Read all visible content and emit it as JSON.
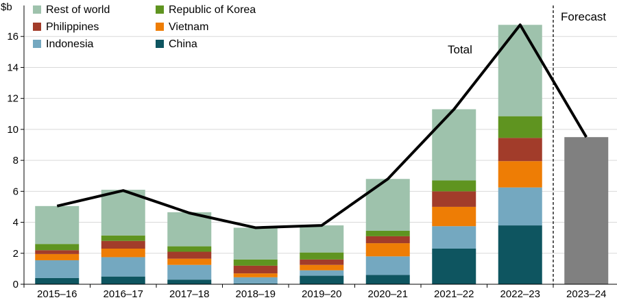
{
  "chart_data": {
    "type": "bar",
    "ylabel": "$b",
    "ylim": [
      0,
      18
    ],
    "yticks": [
      0,
      2,
      4,
      6,
      8,
      10,
      12,
      14,
      16
    ],
    "grid": true,
    "legend_position": "top-left",
    "categories": [
      "2015–16",
      "2016–17",
      "2017–18",
      "2018–19",
      "2019–20",
      "2020–21",
      "2021–22",
      "2022–23",
      "2023–24"
    ],
    "series": [
      {
        "name": "China",
        "color": "#0e5560",
        "values": [
          0.4,
          0.5,
          0.3,
          0.05,
          0.55,
          0.6,
          2.3,
          3.8,
          null
        ]
      },
      {
        "name": "Indonesia",
        "color": "#74a8c0",
        "values": [
          1.15,
          1.25,
          0.95,
          0.4,
          0.35,
          1.2,
          1.45,
          2.45,
          null
        ]
      },
      {
        "name": "Vietnam",
        "color": "#ee7d05",
        "values": [
          0.4,
          0.55,
          0.4,
          0.25,
          0.35,
          0.85,
          1.25,
          1.7,
          null
        ]
      },
      {
        "name": "Philippines",
        "color": "#a23c2a",
        "values": [
          0.25,
          0.5,
          0.45,
          0.5,
          0.35,
          0.45,
          1.0,
          1.5,
          null
        ]
      },
      {
        "name": "Republic of Korea",
        "color": "#5f9420",
        "values": [
          0.4,
          0.35,
          0.35,
          0.4,
          0.45,
          0.35,
          0.7,
          1.4,
          null
        ]
      },
      {
        "name": "Rest of world",
        "color": "#9ec2ac",
        "values": [
          2.45,
          2.95,
          2.2,
          2.05,
          1.75,
          3.35,
          4.6,
          5.9,
          null
        ]
      }
    ],
    "forecast_values": [
      null,
      null,
      null,
      null,
      null,
      null,
      null,
      null,
      9.5
    ],
    "forecast_color": "#808080",
    "total_line": {
      "label": "Total",
      "values": [
        5.05,
        6.05,
        4.6,
        3.65,
        3.8,
        6.8,
        11.3,
        16.75,
        9.5
      ]
    },
    "forecast_label": "Forecast"
  }
}
